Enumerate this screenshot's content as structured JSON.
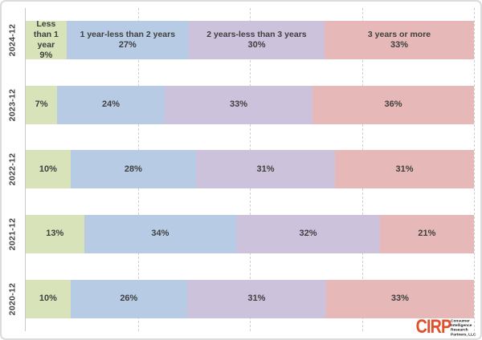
{
  "chart_data": {
    "type": "bar",
    "orientation": "horizontal",
    "stacked": true,
    "unit": "%",
    "categories": [
      "2024-12",
      "2023-12",
      "2022-12",
      "2021-12",
      "2020-12"
    ],
    "series": [
      {
        "name": "Less than 1 year",
        "color": "#d8e3ba",
        "values": [
          9,
          7,
          10,
          13,
          10
        ]
      },
      {
        "name": "1 year-less than 2 years",
        "color": "#b7cce4",
        "values": [
          27,
          24,
          28,
          34,
          26
        ]
      },
      {
        "name": "2 years-less than 3 years",
        "color": "#ccc2dc",
        "values": [
          30,
          33,
          31,
          32,
          31
        ]
      },
      {
        "name": "3 years or more",
        "color": "#e6b9b8",
        "values": [
          33,
          36,
          31,
          21,
          33
        ]
      }
    ],
    "xlim": [
      0,
      100
    ],
    "gridlines_percent": [
      25,
      50,
      75,
      100
    ],
    "legend_position": "none",
    "grid": "dashed-vertical",
    "segment_names_shown_on_first_row_only": true,
    "title": "",
    "xlabel": "",
    "ylabel": ""
  },
  "logo": {
    "text": "CIRP",
    "color": "#e0502b",
    "tagline_lines": [
      "Consumer",
      "Intelligence",
      "Research",
      "Partners, LLC"
    ]
  }
}
